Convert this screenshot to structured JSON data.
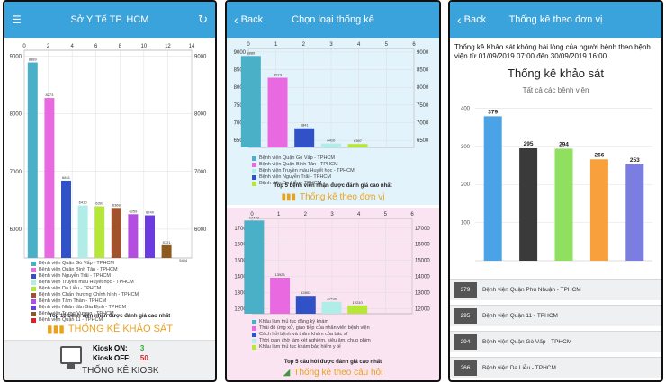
{
  "colors": {
    "nav": "#3aa3dc",
    "accent": "#e9a21d"
  },
  "phone1": {
    "title": "Sở Y Tế TP. HCM",
    "menu_icon": "hamburger-icon",
    "refresh_icon": "refresh-icon",
    "legend": [
      {
        "label": "Bệnh viện Quận Gò Vấp - TPHCM",
        "color": "#4ab0c8"
      },
      {
        "label": "Bệnh viện Quận Bình Tân - TPHCM",
        "color": "#e96ae0"
      },
      {
        "label": "Bệnh viện Nguyễn Trãi - TPHCM",
        "color": "#3151c6"
      },
      {
        "label": "Bệnh viện Truyền máu Huyết học - TPHCM",
        "color": "#b0ece8"
      },
      {
        "label": "Bệnh viện Da Liễu - TPHCM",
        "color": "#b7e63a"
      },
      {
        "label": "Bệnh viện Chấn thương Chỉnh hình - TPHCM",
        "color": "#a0522d"
      },
      {
        "label": "Bệnh viện Tâm Thần - TPHCM",
        "color": "#b44ee0"
      },
      {
        "label": "Bệnh viện Nhân dân Gia Định - TPHCM",
        "color": "#6b3be0"
      },
      {
        "label": "Bệnh viện Trưng Vương - TPHCM",
        "color": "#8b5a1e"
      },
      {
        "label": "Bệnh viện Quận 11 - TPHCM",
        "color": "#e02020"
      }
    ],
    "caption": "Top 10 bệnh viện nhận được đánh giá cao nhất",
    "button": "THỐNG KÊ KHẢO SÁT",
    "kiosk_on_label": "Kiosk ON:",
    "kiosk_on_value": "3",
    "kiosk_off_label": "Kiosk OFF:",
    "kiosk_off_value": "50",
    "kiosk_button": "THỐNG KÊ KIOSK"
  },
  "phone2": {
    "back": "Back",
    "title": "Chọn loại thống kê",
    "legend1": [
      {
        "label": "Bệnh viện Quận Gò Vấp - TPHCM",
        "color": "#4ab0c8"
      },
      {
        "label": "Bệnh viện Quận Bình Tân - TPHCM",
        "color": "#e96ae0"
      },
      {
        "label": "Bệnh viện Truyền máu Huyết học - TPHCM",
        "color": "#b0ece8"
      },
      {
        "label": "Bệnh viện Nguyễn Trãi - TPHCM",
        "color": "#3151c6"
      },
      {
        "label": "Bệnh viện Da Liễu - TPHCM",
        "color": "#b7e63a"
      }
    ],
    "caption1": "Top 5 bệnh viện nhận được đánh giá cao nhất",
    "button1": "Thống kê theo đơn vị",
    "legend2": [
      {
        "label": "Khâu làm thủ tục đăng ký khám",
        "color": "#4ab0c8"
      },
      {
        "label": "Thái độ ứng xử, giao tiếp của nhân viên bệnh viện",
        "color": "#e96ae0"
      },
      {
        "label": "Cách hỏi bệnh và thăm khám của bác sĩ",
        "color": "#3151c6"
      },
      {
        "label": "Thời gian chờ làm xét nghiệm, siêu âm, chụp phim",
        "color": "#b0ece8"
      },
      {
        "label": "Khâu làm thủ tục khám bảo hiểm y tế",
        "color": "#b7e63a"
      }
    ],
    "caption2": "Top 5 câu hỏi được đánh giá cao nhất",
    "button2": "Thống kê theo câu hỏi"
  },
  "phone3": {
    "back": "Back",
    "title": "Thống kê theo đơn vị",
    "heading": "Thống kê Khảo sát không hài lòng của người bệnh theo bệnh viện từ 01/09/2019 07:00 đến 30/09/2019 16:00",
    "chart_title": "Thống kê khảo sát",
    "chart_subtitle": "Tất cả các bệnh viện",
    "list": [
      {
        "num": "379",
        "name": "Bệnh viện Quận Phú Nhuận - TPHCM"
      },
      {
        "num": "295",
        "name": "Bệnh viện Quận 11 - TPHCM"
      },
      {
        "num": "294",
        "name": "Bệnh viện Quận Gò Vấp - TPHCM"
      },
      {
        "num": "266",
        "name": "Bệnh viện Da Liễu - TPHCM"
      }
    ]
  },
  "chart_data": [
    {
      "type": "bar",
      "top_axis_ticks": [
        "0",
        "2",
        "4",
        "6",
        "8",
        "10",
        "12",
        "14"
      ],
      "y_ticks": [
        "6000",
        "7000",
        "8000",
        "9000"
      ],
      "ylim": [
        5500,
        9100
      ],
      "values": [
        8889,
        8273,
        6841,
        6410,
        6397,
        6368,
        6259,
        6240,
        5721,
        5404
      ],
      "value_labels": [
        "8889",
        "8273",
        "6841",
        "6410",
        "6397",
        "6368",
        "6259",
        "6240",
        "5721",
        "5404"
      ],
      "colors": [
        "#4ab0c8",
        "#e96ae0",
        "#3151c6",
        "#b0ece8",
        "#b7e63a",
        "#a0522d",
        "#b44ee0",
        "#6b3be0",
        "#8b5a1e",
        "#e02020"
      ]
    },
    {
      "type": "bar",
      "top_axis_ticks": [
        "0",
        "1",
        "2",
        "3",
        "4",
        "5",
        "6"
      ],
      "y_ticks": [
        "6500",
        "7000",
        "7500",
        "8000",
        "8500",
        "9000"
      ],
      "ylim": [
        6300,
        9100
      ],
      "values": [
        8889,
        8273,
        6841,
        6410,
        6397
      ],
      "value_labels": [
        "8889",
        "8273",
        "6841",
        "6410",
        "6397"
      ],
      "colors": [
        "#4ab0c8",
        "#e96ae0",
        "#3151c6",
        "#b0ece8",
        "#b7e63a"
      ]
    },
    {
      "type": "bar",
      "top_axis_ticks": [
        "0",
        "1",
        "2",
        "3",
        "4",
        "5",
        "6"
      ],
      "y_ticks": [
        "12000",
        "13000",
        "14000",
        "15000",
        "16000",
        "17000"
      ],
      "ylim": [
        11700,
        17600
      ],
      "values": [
        17472,
        13926,
        12803,
        12438,
        12210
      ],
      "value_labels": [
        "17472",
        "13926",
        "12803",
        "12438",
        "12210"
      ],
      "colors": [
        "#4ab0c8",
        "#e96ae0",
        "#3151c6",
        "#b0ece8",
        "#b7e63a"
      ]
    },
    {
      "type": "bar",
      "y_ticks": [
        "100",
        "200",
        "300",
        "400"
      ],
      "ylim": [
        0,
        420
      ],
      "values": [
        379,
        295,
        294,
        266,
        253
      ],
      "value_labels": [
        "379",
        "295",
        "294",
        "266",
        "253"
      ],
      "colors": [
        "#4aa3e6",
        "#3a3a3a",
        "#8ee05e",
        "#f7a03c",
        "#7b7ee0"
      ]
    }
  ]
}
